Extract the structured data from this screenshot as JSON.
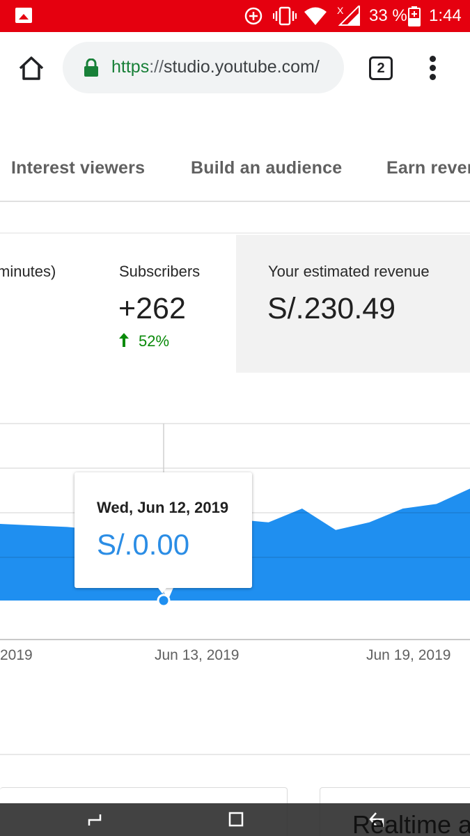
{
  "status_bar": {
    "battery": "33 %",
    "time": "1:44",
    "icons": [
      "gallery-icon",
      "data-saver-icon",
      "vibrate-icon",
      "wifi-icon",
      "signal-no-service-icon",
      "battery-charging-icon"
    ]
  },
  "browser": {
    "url_scheme": "https",
    "url_sep": "://",
    "url_host": "studio.youtube.com/",
    "tab_count": "2",
    "icons": [
      "home-icon",
      "lock-icon",
      "tab-switcher-icon",
      "more-vert-icon"
    ]
  },
  "tabs": [
    {
      "label": "Interest viewers"
    },
    {
      "label": "Build an audience"
    },
    {
      "label": "Earn reven"
    }
  ],
  "metrics": {
    "watch_time_label": "minutes)",
    "subscribers_label": "Subscribers",
    "subscribers_value": "+262",
    "subscribers_change": "52%",
    "revenue_label": "Your estimated revenue",
    "revenue_value": "S/.230.49"
  },
  "colors": {
    "status_bar": "#e5000f",
    "chart_fill": "#1f8ff0",
    "tooltip_value": "#2b8de5",
    "positive_change": "#0a8a0a",
    "selected_card": "#f2f2f2"
  },
  "tooltip": {
    "date": "Wed, Jun 12, 2019",
    "value": "S/.0.00"
  },
  "x_axis": {
    "ticks": [
      "2019",
      "Jun 13, 2019",
      "Jun 19, 2019"
    ]
  },
  "realtime": {
    "title": "Realtime a"
  },
  "nav": {
    "icons": [
      "back-icon",
      "home-square-icon",
      "recents-icon"
    ]
  },
  "chart_data": {
    "type": "area",
    "series": [
      {
        "values": [
          5.0,
          4.9,
          4.8,
          4.6,
          4.8,
          0.0,
          5.1,
          5.3,
          5.1,
          6.0,
          4.6,
          5.1,
          6.0,
          6.3,
          7.3
        ]
      }
    ],
    "x_ticks": [
      "2019",
      "Jun 13, 2019",
      "Jun 19, 2019"
    ],
    "highlight": {
      "label": "Wed, Jun 12, 2019",
      "value": "S/.0.00"
    },
    "grid": true
  }
}
